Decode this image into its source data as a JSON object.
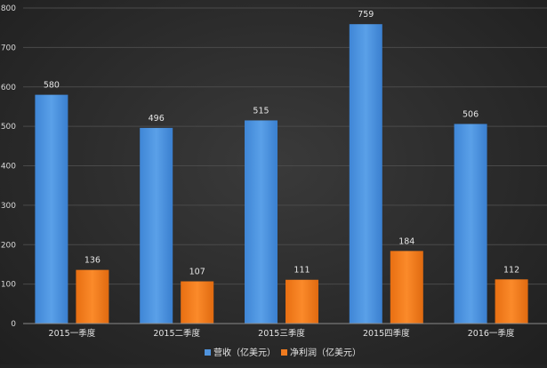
{
  "chart_data": {
    "type": "bar",
    "title": "",
    "xlabel": "",
    "ylabel": "",
    "categories": [
      "2015一季度",
      "2015二季度",
      "2015三季度",
      "2015四季度",
      "2016一季度"
    ],
    "series": [
      {
        "name": "营收（亿美元）",
        "color": "#4f93dd",
        "values": [
          580,
          496,
          515,
          759,
          506
        ]
      },
      {
        "name": "净利润（亿美元）",
        "color": "#f07b1f",
        "values": [
          136,
          107,
          111,
          184,
          112
        ]
      }
    ],
    "ylim": [
      0,
      800
    ],
    "yticks": [
      0,
      100,
      200,
      300,
      400,
      500,
      600,
      700,
      800
    ],
    "grid": true,
    "legend_position": "bottom"
  }
}
